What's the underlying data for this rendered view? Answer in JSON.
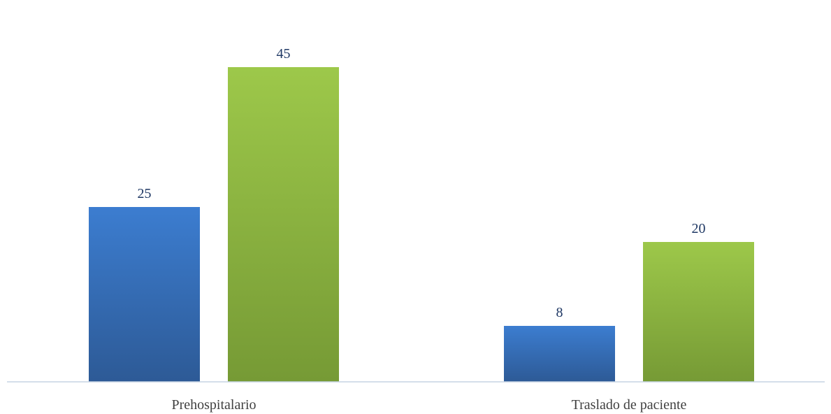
{
  "chart_data": {
    "type": "bar",
    "title": "",
    "xlabel": "",
    "ylabel": "",
    "categories": [
      "Prehospitalario",
      "Traslado de paciente"
    ],
    "series": [
      {
        "values": [
          25,
          8
        ],
        "color_top": "#3c7dd0",
        "color_bottom": "#2d5a96"
      },
      {
        "values": [
          45,
          20
        ],
        "color_top": "#9dc84a",
        "color_bottom": "#769a35"
      }
    ],
    "ylim": [
      0,
      50
    ],
    "grid": false,
    "legend": "none",
    "data_labels": true,
    "axis_color": "#c6d3e3"
  }
}
